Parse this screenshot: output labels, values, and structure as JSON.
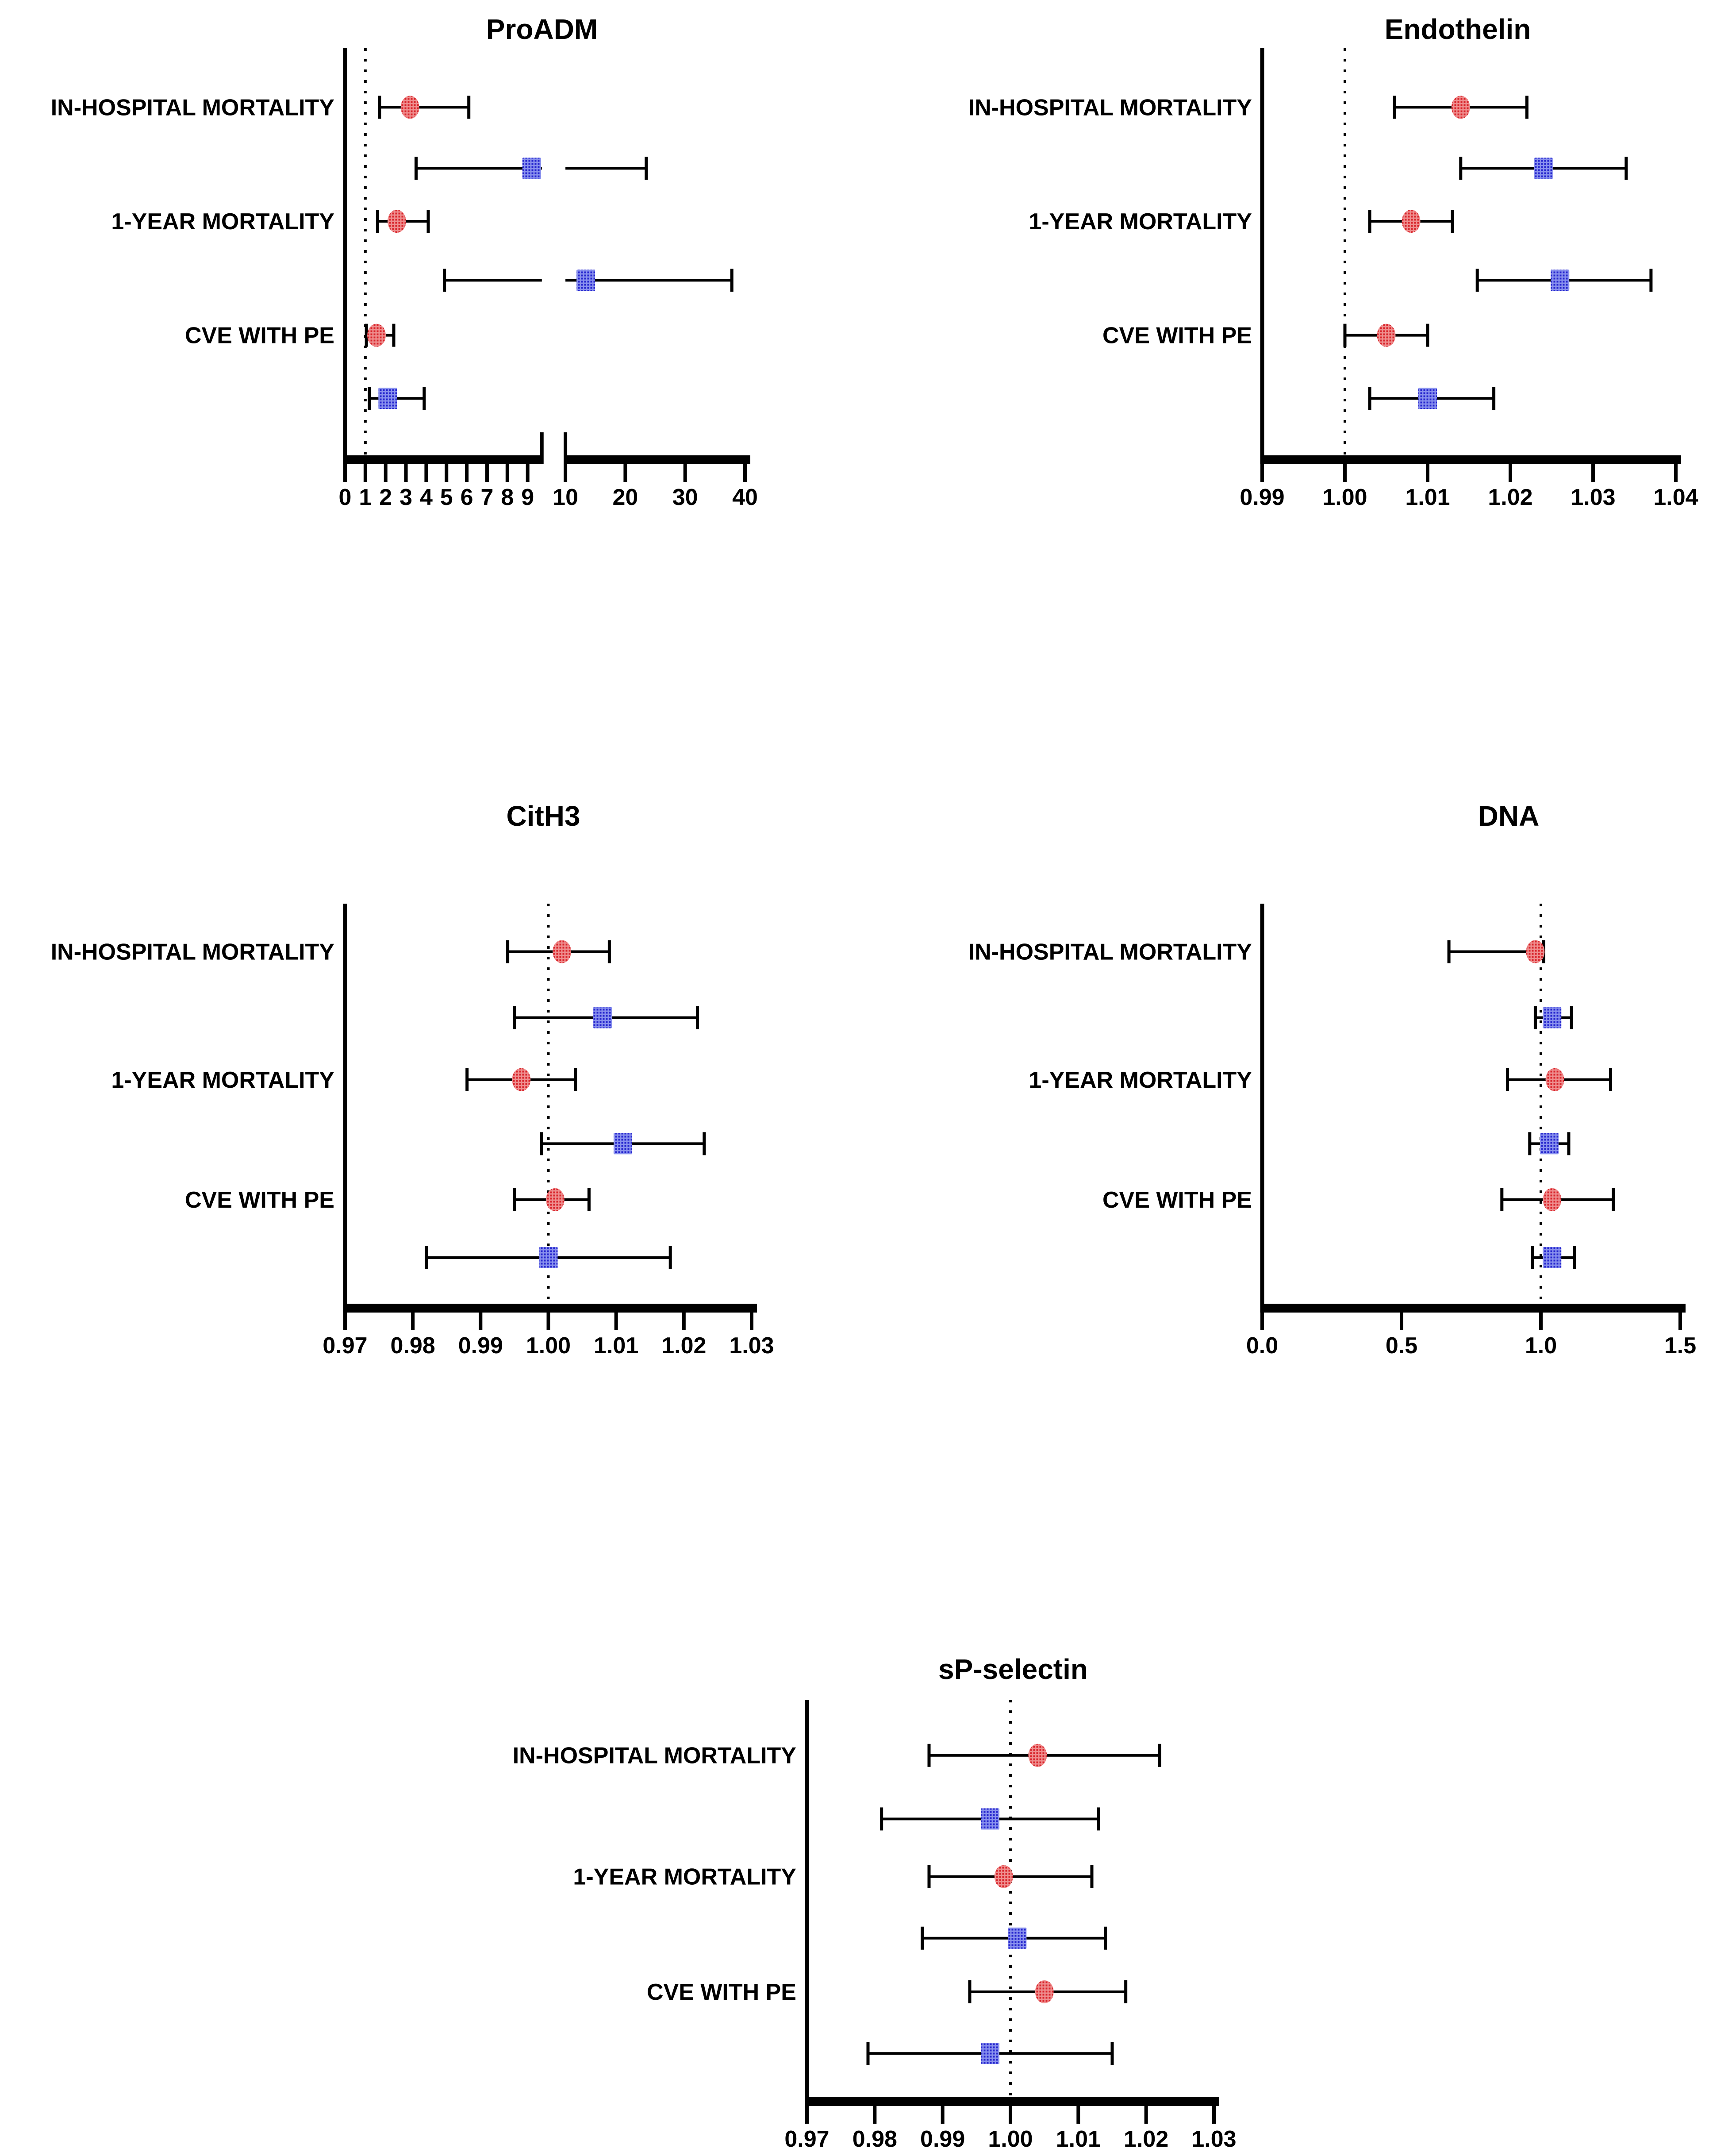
{
  "page": {
    "background": "#ffffff",
    "description": "Five forest plots of odds ratios (with 95% CI error bars) for biomarkers, each showing three outcomes with a red circle series and a blue square series"
  },
  "colors": {
    "red_series": "#d8232a",
    "red_hatch": "#ef8f8f",
    "blue_series": "#2424cd",
    "blue_hatch": "#8a92ee",
    "axis": "#000000",
    "error_bar": "#000000",
    "reference_line": "#000000"
  },
  "chart_data": [
    {
      "key": "proadm",
      "type": "scatter",
      "subtype": "forest-plot",
      "title": "ProADM",
      "categories": [
        "IN-HOSPITAL MORTALITY",
        "1-YEAR MORTALITY",
        "CVE WITH PE"
      ],
      "axis": {
        "scale": "broken-linear",
        "reference_line": 1,
        "tick_decimals": 0,
        "segments": [
          {
            "min": 0,
            "max": 9.7,
            "frac": [
              0,
              0.492
            ],
            "ticks": [
              0,
              1,
              2,
              3,
              4,
              5,
              6,
              7,
              8,
              9
            ]
          },
          {
            "min": 10,
            "max": 40,
            "frac": [
              0.551,
              1
            ],
            "ticks": [
              10,
              20,
              30,
              40
            ]
          }
        ]
      },
      "series": [
        {
          "name": "red-circle-series",
          "marker": "circle",
          "color": "#d8232a",
          "points": [
            {
              "or": 3.2,
              "lo": 1.7,
              "hi": 6.1
            },
            {
              "or": 2.55,
              "lo": 1.6,
              "hi": 4.1
            },
            {
              "or": 1.55,
              "lo": 1.05,
              "hi": 2.4
            }
          ]
        },
        {
          "name": "blue-square-series",
          "marker": "square",
          "color": "#2424cd",
          "points": [
            {
              "or": 9.2,
              "lo": 3.5,
              "hi": 23.5
            },
            {
              "or": 13.4,
              "lo": 4.9,
              "hi": 37.8
            },
            {
              "or": 2.1,
              "lo": 1.2,
              "hi": 3.9
            }
          ]
        }
      ]
    },
    {
      "key": "endothelin",
      "type": "scatter",
      "subtype": "forest-plot",
      "title": "Endothelin",
      "categories": [
        "IN-HOSPITAL MORTALITY",
        "1-YEAR MORTALITY",
        "CVE WITH PE"
      ],
      "axis": {
        "scale": "linear",
        "min": 0.99,
        "max": 1.04,
        "ticks": [
          0.99,
          1.0,
          1.01,
          1.02,
          1.03,
          1.04
        ],
        "tick_decimals": 2,
        "reference_line": 1.0
      },
      "series": [
        {
          "name": "red-circle-series",
          "marker": "circle",
          "color": "#d8232a",
          "points": [
            {
              "or": 1.014,
              "lo": 1.006,
              "hi": 1.022
            },
            {
              "or": 1.008,
              "lo": 1.003,
              "hi": 1.013
            },
            {
              "or": 1.005,
              "lo": 1.0,
              "hi": 1.01
            }
          ]
        },
        {
          "name": "blue-square-series",
          "marker": "square",
          "color": "#2424cd",
          "points": [
            {
              "or": 1.024,
              "lo": 1.014,
              "hi": 1.034
            },
            {
              "or": 1.026,
              "lo": 1.016,
              "hi": 1.037
            },
            {
              "or": 1.01,
              "lo": 1.003,
              "hi": 1.018
            }
          ]
        }
      ]
    },
    {
      "key": "cith3",
      "type": "scatter",
      "subtype": "forest-plot",
      "title": "CitH3",
      "categories": [
        "IN-HOSPITAL MORTALITY",
        "1-YEAR MORTALITY",
        "CVE WITH PE"
      ],
      "axis": {
        "scale": "linear",
        "min": 0.97,
        "max": 1.03,
        "ticks": [
          0.97,
          0.98,
          0.99,
          1.0,
          1.01,
          1.02,
          1.03
        ],
        "tick_decimals": 2,
        "reference_line": 1.0
      },
      "series": [
        {
          "name": "red-circle-series",
          "marker": "circle",
          "color": "#d8232a",
          "points": [
            {
              "or": 1.002,
              "lo": 0.994,
              "hi": 1.009
            },
            {
              "or": 0.996,
              "lo": 0.988,
              "hi": 1.004
            },
            {
              "or": 1.001,
              "lo": 0.995,
              "hi": 1.006
            }
          ]
        },
        {
          "name": "blue-square-series",
          "marker": "square",
          "color": "#2424cd",
          "points": [
            {
              "or": 1.008,
              "lo": 0.995,
              "hi": 1.022
            },
            {
              "or": 1.011,
              "lo": 0.999,
              "hi": 1.023
            },
            {
              "or": 1.0,
              "lo": 0.982,
              "hi": 1.018
            }
          ]
        }
      ]
    },
    {
      "key": "dna",
      "type": "scatter",
      "subtype": "forest-plot",
      "title": "DNA",
      "categories": [
        "IN-HOSPITAL MORTALITY",
        "1-YEAR MORTALITY",
        "CVE WITH PE"
      ],
      "axis": {
        "scale": "linear",
        "min": 0.0,
        "max": 1.5,
        "ticks": [
          0.0,
          0.5,
          1.0,
          1.5
        ],
        "tick_decimals": 1,
        "reference_line": 1.0
      },
      "series": [
        {
          "name": "red-circle-series",
          "marker": "circle",
          "color": "#d8232a",
          "points": [
            {
              "or": 0.98,
              "lo": 0.67,
              "hi": 1.01
            },
            {
              "or": 1.05,
              "lo": 0.88,
              "hi": 1.25
            },
            {
              "or": 1.04,
              "lo": 0.86,
              "hi": 1.26
            }
          ]
        },
        {
          "name": "blue-square-series",
          "marker": "square",
          "color": "#2424cd",
          "points": [
            {
              "or": 1.04,
              "lo": 0.98,
              "hi": 1.11
            },
            {
              "or": 1.03,
              "lo": 0.96,
              "hi": 1.1
            },
            {
              "or": 1.04,
              "lo": 0.97,
              "hi": 1.12
            }
          ]
        }
      ]
    },
    {
      "key": "spselectin",
      "type": "scatter",
      "subtype": "forest-plot",
      "title": "sP-selectin",
      "categories": [
        "IN-HOSPITAL MORTALITY",
        "1-YEAR MORTALITY",
        "CVE WITH PE"
      ],
      "axis": {
        "scale": "linear",
        "min": 0.97,
        "max": 1.03,
        "ticks": [
          0.97,
          0.98,
          0.99,
          1.0,
          1.01,
          1.02,
          1.03
        ],
        "tick_decimals": 2,
        "reference_line": 1.0
      },
      "series": [
        {
          "name": "red-circle-series",
          "marker": "circle",
          "color": "#d8232a",
          "points": [
            {
              "or": 1.004,
              "lo": 0.988,
              "hi": 1.022
            },
            {
              "or": 0.999,
              "lo": 0.988,
              "hi": 1.012
            },
            {
              "or": 1.005,
              "lo": 0.994,
              "hi": 1.017
            }
          ]
        },
        {
          "name": "blue-square-series",
          "marker": "square",
          "color": "#2424cd",
          "points": [
            {
              "or": 0.997,
              "lo": 0.981,
              "hi": 1.013
            },
            {
              "or": 1.001,
              "lo": 0.987,
              "hi": 1.014
            },
            {
              "or": 0.997,
              "lo": 0.979,
              "hi": 1.015
            }
          ]
        }
      ]
    }
  ]
}
